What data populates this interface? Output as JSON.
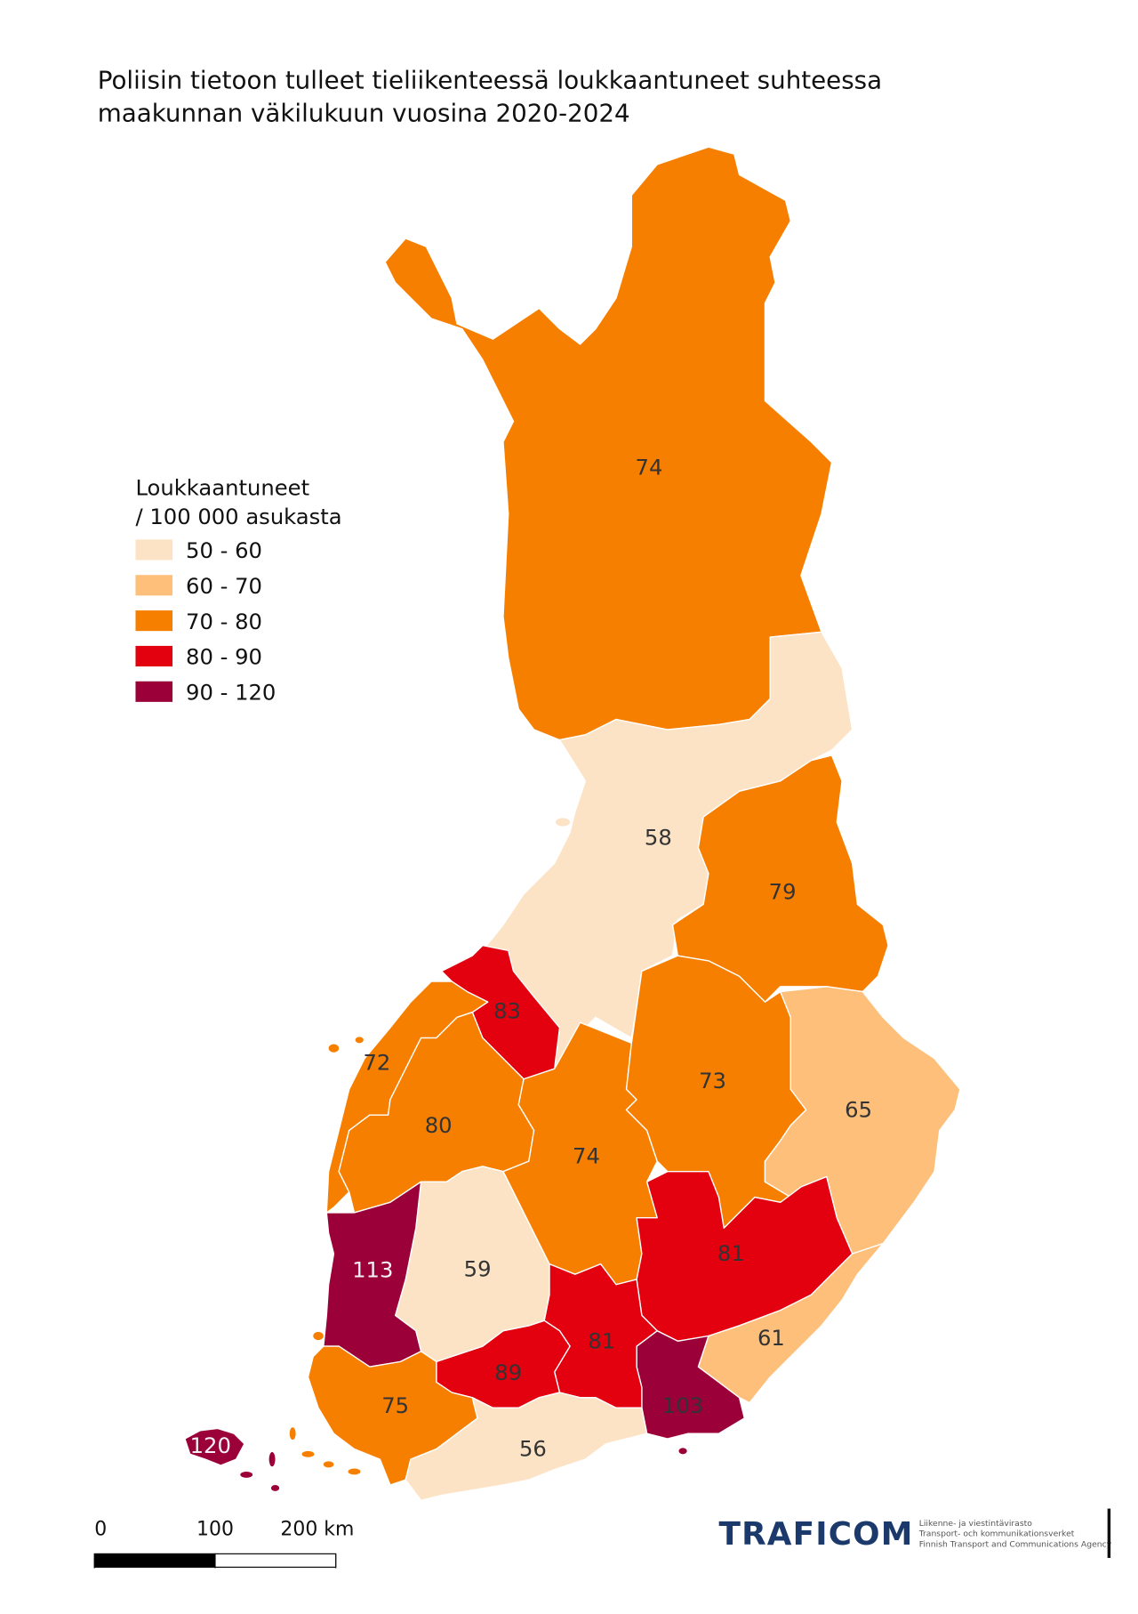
{
  "title_lines": [
    "Poliisin tietoon tulleet tieliikenteessä loukkaantuneet suhteessa",
    "maakunnan väkilukuun vuosina 2020-2024"
  ],
  "legend": {
    "title_lines": [
      "Loukkaantuneet",
      "/ 100 000 asukasta"
    ],
    "classes": [
      {
        "label": "50 - 60",
        "color": "#fce3c6"
      },
      {
        "label": "60 - 70",
        "color": "#fdbf7a"
      },
      {
        "label": "70 - 80",
        "color": "#f77f00"
      },
      {
        "label": "80 - 90",
        "color": "#e3000f"
      },
      {
        "label": "90 - 120",
        "color": "#9b0039"
      }
    ]
  },
  "regions": [
    {
      "value": 74,
      "color": "#f77f00"
    },
    {
      "value": 58,
      "color": "#fce3c6"
    },
    {
      "value": 79,
      "color": "#f77f00"
    },
    {
      "value": 83,
      "color": "#e3000f"
    },
    {
      "value": 72,
      "color": "#f77f00"
    },
    {
      "value": 80,
      "color": "#f77f00"
    },
    {
      "value": 74,
      "color": "#f77f00"
    },
    {
      "value": 73,
      "color": "#f77f00"
    },
    {
      "value": 65,
      "color": "#fdbf7a"
    },
    {
      "value": 81,
      "color": "#e3000f"
    },
    {
      "value": 61,
      "color": "#fdbf7a"
    },
    {
      "value": 103,
      "color": "#9b0039"
    },
    {
      "value": 81,
      "color": "#e3000f"
    },
    {
      "value": 89,
      "color": "#e3000f"
    },
    {
      "value": 59,
      "color": "#fce3c6"
    },
    {
      "value": 113,
      "color": "#9b0039"
    },
    {
      "value": 75,
      "color": "#f77f00"
    },
    {
      "value": 56,
      "color": "#fce3c6"
    },
    {
      "value": 120,
      "color": "#9b0039"
    }
  ],
  "scale_bar": {
    "ticks": [
      0,
      100,
      {
        "value": 200,
        "label": "200 km"
      }
    ]
  },
  "logo": {
    "name": "TRAFICOM",
    "lines": [
      "Liikenne- ja viestintävirasto",
      "Transport- och kommunikationsverket",
      "Finnish Transport and Communications Agency"
    ]
  }
}
